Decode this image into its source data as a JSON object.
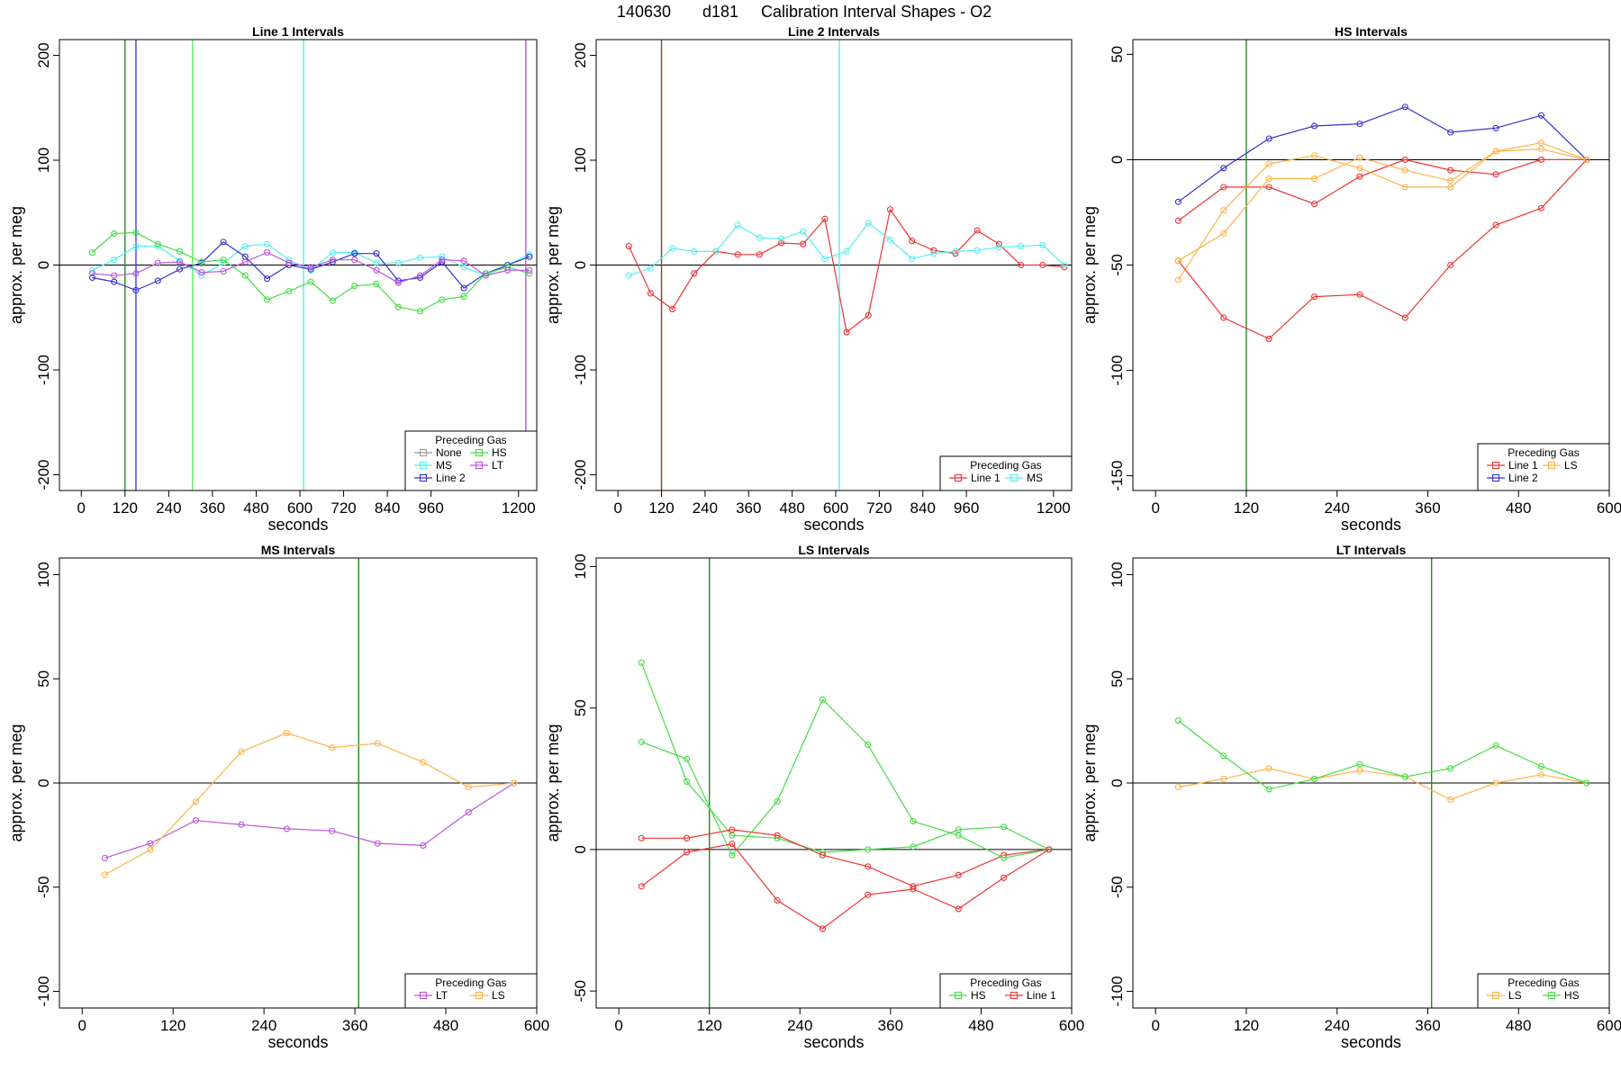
{
  "figure": {
    "title_id": "140630",
    "title_code": "d181",
    "title_text": "Calibration Interval Shapes - O2"
  },
  "chart_data": [
    {
      "type": "line",
      "title": "Line 1 Intervals",
      "xlabel": "seconds",
      "ylabel": "approx. per meg",
      "xlim": [
        -60,
        1250
      ],
      "ylim": [
        -215,
        215
      ],
      "xticks": [
        0,
        120,
        240,
        360,
        480,
        600,
        720,
        840,
        960,
        1200
      ],
      "yticks": [
        -200,
        -100,
        0,
        100,
        200
      ],
      "hline": 0,
      "vlines": [
        {
          "x": 120,
          "color": "#228B22"
        },
        {
          "x": 150,
          "color": "#4040DD"
        },
        {
          "x": 305,
          "color": "#66EE66"
        },
        {
          "x": 610,
          "color": "#55EEEE"
        },
        {
          "x": 1220,
          "color": "#BB55DD"
        }
      ],
      "legend": {
        "title": "Preceding Gas",
        "position": "bottom-right",
        "cols": 2
      },
      "series": [
        {
          "name": "None",
          "color": "#999999",
          "x": [],
          "y": []
        },
        {
          "name": "MS",
          "color": "#55EEEE",
          "x": [
            30,
            90,
            150,
            210,
            270,
            330,
            390,
            450,
            510,
            570,
            630,
            690,
            750,
            810,
            870,
            930,
            990,
            1050,
            1110,
            1170,
            1230
          ],
          "y": [
            -5,
            5,
            18,
            18,
            4,
            -10,
            2,
            18,
            20,
            5,
            -5,
            12,
            12,
            2,
            2,
            7,
            8,
            -2,
            -10,
            0,
            10
          ]
        },
        {
          "name": "Line 2",
          "color": "#3333CC",
          "x": [
            30,
            90,
            150,
            210,
            270,
            330,
            390,
            450,
            510,
            570,
            630,
            690,
            750,
            810,
            870,
            930,
            990,
            1050,
            1110,
            1170,
            1230
          ],
          "y": [
            -12,
            -16,
            -24,
            -15,
            -4,
            2,
            22,
            8,
            -13,
            0,
            -4,
            3,
            11,
            11,
            -15,
            -12,
            3,
            -22,
            -8,
            0,
            8
          ]
        },
        {
          "name": "HS",
          "color": "#44DD44",
          "x": [
            30,
            90,
            150,
            210,
            270,
            330,
            390,
            450,
            510,
            570,
            630,
            690,
            750,
            810,
            870,
            930,
            990,
            1050,
            1110,
            1170,
            1230
          ],
          "y": [
            12,
            30,
            31,
            20,
            13,
            3,
            5,
            -10,
            -33,
            -25,
            -16,
            -34,
            -20,
            -18,
            -40,
            -44,
            -33,
            -30,
            -8,
            -2,
            -8
          ]
        },
        {
          "name": "LT",
          "color": "#BB55DD",
          "x": [
            30,
            90,
            150,
            210,
            270,
            330,
            390,
            450,
            510,
            570,
            630,
            690,
            750,
            810,
            870,
            930,
            990,
            1050,
            1110,
            1170,
            1230
          ],
          "y": [
            -8,
            -10,
            -8,
            2,
            3,
            -7,
            -6,
            3,
            12,
            2,
            -2,
            5,
            5,
            -5,
            -17,
            -10,
            5,
            4,
            -10,
            -5,
            -5
          ]
        }
      ]
    },
    {
      "type": "line",
      "title": "Line 2 Intervals",
      "xlabel": "seconds",
      "ylabel": "approx. per meg",
      "xlim": [
        -60,
        1250
      ],
      "ylim": [
        -215,
        215
      ],
      "xticks": [
        0,
        120,
        240,
        360,
        480,
        600,
        720,
        840,
        960,
        1200
      ],
      "yticks": [
        -200,
        -100,
        0,
        100,
        200
      ],
      "hline": 0,
      "vlines": [
        {
          "x": 120,
          "color": "#8B4513"
        },
        {
          "x": 610,
          "color": "#55EEEE"
        }
      ],
      "legend": {
        "title": "Preceding Gas",
        "position": "bottom-right",
        "cols": 2
      },
      "series": [
        {
          "name": "Line 1",
          "color": "#EE3333",
          "x": [
            30,
            90,
            150,
            210,
            270,
            330,
            390,
            450,
            510,
            570,
            630,
            690,
            750,
            810,
            870,
            930,
            990,
            1050,
            1110,
            1170,
            1230
          ],
          "y": [
            18,
            -27,
            -42,
            -8,
            13,
            10,
            10,
            21,
            20,
            44,
            -64,
            -48,
            53,
            23,
            14,
            11,
            33,
            20,
            0,
            0,
            -2
          ]
        },
        {
          "name": "MS",
          "color": "#55EEEE",
          "x": [
            30,
            90,
            150,
            210,
            270,
            330,
            390,
            450,
            510,
            570,
            630,
            690,
            750,
            810,
            870,
            930,
            990,
            1050,
            1110,
            1170,
            1230
          ],
          "y": [
            -10,
            -3,
            16,
            13,
            13,
            38,
            26,
            25,
            32,
            6,
            13,
            40,
            24,
            6,
            11,
            13,
            14,
            17,
            18,
            19,
            0
          ]
        }
      ]
    },
    {
      "type": "line",
      "title": "HS Intervals",
      "xlabel": "seconds",
      "ylabel": "approx. per meg",
      "xlim": [
        -30,
        600
      ],
      "ylim": [
        -157,
        57
      ],
      "xticks": [
        0,
        120,
        240,
        360,
        480,
        600
      ],
      "yticks": [
        -150,
        -100,
        -50,
        0,
        50
      ],
      "hline": 0,
      "vlines": [
        {
          "x": 120,
          "color": "#228B22"
        }
      ],
      "legend": {
        "title": "Preceding Gas",
        "position": "bottom-right",
        "cols": 2
      },
      "series": [
        {
          "name": "Line 1",
          "color": "#EE3333",
          "x": [
            30,
            90,
            150,
            210,
            270,
            330,
            390,
            450,
            510,
            570
          ],
          "y": [
            -29,
            -13,
            -13,
            -21,
            -8,
            0,
            -5,
            -7,
            0,
            0
          ]
        },
        {
          "name": "Line 2",
          "color": "#3333CC",
          "x": [
            30,
            90,
            150,
            210,
            270,
            330,
            390,
            450,
            510,
            570
          ],
          "y": [
            -20,
            -4,
            10,
            16,
            17,
            25,
            13,
            15,
            21,
            0
          ]
        },
        {
          "name": "LS",
          "color": "#FFB347",
          "x": [
            30,
            90,
            150,
            210,
            270,
            330,
            390,
            450,
            510,
            570
          ],
          "y": [
            -57,
            -24,
            -2,
            2,
            -4,
            -13,
            -13,
            4,
            8,
            0
          ]
        },
        {
          "name": "",
          "color": "#EE3333",
          "x": [
            30,
            90,
            150,
            210,
            270,
            330,
            390,
            450,
            510,
            570
          ],
          "y": [
            -48,
            -75,
            -85,
            -65,
            -64,
            -75,
            -50,
            -31,
            -23,
            0
          ]
        },
        {
          "name": "",
          "color": "#FFB347",
          "x": [
            30,
            90,
            150,
            210,
            270,
            330,
            390,
            450,
            510,
            570
          ],
          "y": [
            -48,
            -35,
            -9,
            -9,
            1,
            -5,
            -10,
            4,
            5,
            0
          ]
        }
      ]
    },
    {
      "type": "line",
      "title": "MS Intervals",
      "xlabel": "seconds",
      "ylabel": "approx. per meg",
      "xlim": [
        -30,
        600
      ],
      "ylim": [
        -108,
        108
      ],
      "xticks": [
        0,
        120,
        240,
        360,
        480,
        600
      ],
      "yticks": [
        -100,
        -50,
        0,
        50,
        100
      ],
      "hline": 0,
      "vlines": [
        {
          "x": 365,
          "color": "#228B22"
        }
      ],
      "legend": {
        "title": "Preceding Gas",
        "position": "bottom-right",
        "cols": 2
      },
      "series": [
        {
          "name": "LT",
          "color": "#BB55DD",
          "x": [
            30,
            90,
            150,
            210,
            270,
            330,
            390,
            450,
            510,
            570
          ],
          "y": [
            -36,
            -29,
            -18,
            -20,
            -22,
            -23,
            -29,
            -30,
            -14,
            0
          ]
        },
        {
          "name": "LS",
          "color": "#FFB347",
          "x": [
            30,
            90,
            150,
            210,
            270,
            330,
            390,
            450,
            510,
            570
          ],
          "y": [
            -44,
            -32,
            -9,
            15,
            24,
            17,
            19,
            10,
            -2,
            0
          ]
        }
      ]
    },
    {
      "type": "line",
      "title": "LS Intervals",
      "xlabel": "seconds",
      "ylabel": "approx. per meg",
      "xlim": [
        -30,
        600
      ],
      "ylim": [
        -56,
        103
      ],
      "xticks": [
        0,
        120,
        240,
        360,
        480,
        600
      ],
      "yticks": [
        -50,
        0,
        50,
        100
      ],
      "hline": 0,
      "vlines": [
        {
          "x": 120,
          "color": "#228B22"
        }
      ],
      "legend": {
        "title": "Preceding Gas",
        "position": "bottom-right",
        "cols": 2
      },
      "series": [
        {
          "name": "HS",
          "color": "#44DD44",
          "x": [
            30,
            90,
            150,
            210,
            270,
            330,
            390,
            450,
            510,
            570
          ],
          "y": [
            66,
            24,
            5,
            4,
            -1,
            0,
            1,
            7,
            8,
            0
          ]
        },
        {
          "name": "Line 1",
          "color": "#EE3333",
          "x": [
            30,
            90,
            150,
            210,
            270,
            330,
            390,
            450,
            510,
            570
          ],
          "y": [
            4,
            4,
            7,
            5,
            -2,
            -6,
            -13,
            -9,
            -2,
            0
          ]
        },
        {
          "name": "",
          "color": "#44DD44",
          "x": [
            30,
            90,
            150,
            210,
            270,
            330,
            390,
            450,
            510,
            570
          ],
          "y": [
            38,
            32,
            -2,
            17,
            53,
            37,
            10,
            5,
            -3,
            0
          ]
        },
        {
          "name": "",
          "color": "#EE3333",
          "x": [
            30,
            90,
            150,
            210,
            270,
            330,
            390,
            450,
            510,
            570
          ],
          "y": [
            -13,
            -1,
            2,
            -18,
            -28,
            -16,
            -14,
            -21,
            -10,
            0
          ]
        }
      ]
    },
    {
      "type": "line",
      "title": "LT Intervals",
      "xlabel": "seconds",
      "ylabel": "approx. per meg",
      "xlim": [
        -30,
        600
      ],
      "ylim": [
        -108,
        108
      ],
      "xticks": [
        0,
        120,
        240,
        360,
        480,
        600
      ],
      "yticks": [
        -100,
        -50,
        0,
        50,
        100
      ],
      "hline": 0,
      "vlines": [
        {
          "x": 365,
          "color": "#228B22"
        }
      ],
      "legend": {
        "title": "Preceding Gas",
        "position": "bottom-right",
        "cols": 2
      },
      "series": [
        {
          "name": "LS",
          "color": "#FFB347",
          "x": [
            30,
            90,
            150,
            210,
            270,
            330,
            390,
            450,
            510,
            570
          ],
          "y": [
            -2,
            2,
            7,
            2,
            6,
            3,
            -8,
            0,
            4,
            0
          ]
        },
        {
          "name": "HS",
          "color": "#44DD44",
          "x": [
            30,
            90,
            150,
            210,
            270,
            330,
            390,
            450,
            510,
            570
          ],
          "y": [
            30,
            13,
            -3,
            2,
            9,
            3,
            7,
            18,
            8,
            0
          ]
        }
      ]
    }
  ]
}
